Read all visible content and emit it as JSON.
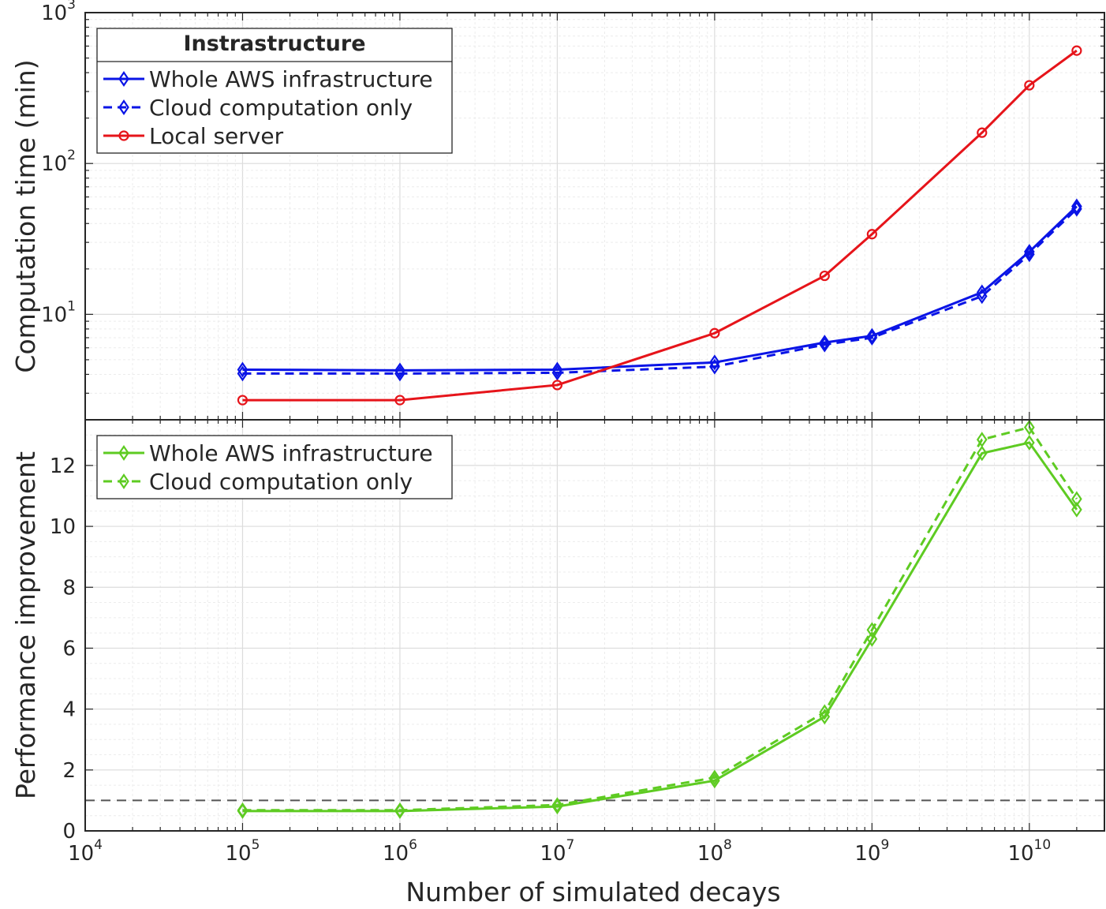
{
  "chart_data": [
    {
      "type": "line",
      "xscale": "log",
      "yscale": "log",
      "xlim": [
        10000,
        30000000000
      ],
      "ylim": [
        2,
        1000
      ],
      "grid": true,
      "ylabel": "Computation time (min)",
      "ytick_labels": [
        {
          "base": "10",
          "exp": "1",
          "value": 10
        },
        {
          "base": "10",
          "exp": "2",
          "value": 100
        },
        {
          "base": "10",
          "exp": "3",
          "value": 1000
        }
      ],
      "legend": {
        "title": "Instrastructure",
        "placement": "top-left"
      },
      "series": [
        {
          "name": "Whole AWS infrastructure",
          "color": "#0a14e6",
          "linestyle": "solid",
          "marker": "diamond",
          "x": [
            100000,
            1000000,
            10000000,
            100000000,
            500000000,
            1000000000,
            5000000000,
            10000000000,
            20000000000
          ],
          "y": [
            4.3,
            4.25,
            4.3,
            4.8,
            6.5,
            7.2,
            14,
            26,
            52
          ]
        },
        {
          "name": "Cloud computation only",
          "color": "#0a14e6",
          "linestyle": "dashed",
          "marker": "diamond",
          "x": [
            100000,
            1000000,
            10000000,
            100000000,
            500000000,
            1000000000,
            5000000000,
            10000000000,
            20000000000
          ],
          "y": [
            4.05,
            4.05,
            4.1,
            4.5,
            6.3,
            7.0,
            13.2,
            25,
            50
          ]
        },
        {
          "name": "Local server",
          "color": "#e6141a",
          "linestyle": "solid",
          "marker": "circle",
          "x": [
            100000,
            1000000,
            10000000,
            100000000,
            500000000,
            1000000000,
            5000000000,
            10000000000,
            20000000000
          ],
          "y": [
            2.7,
            2.7,
            3.4,
            7.5,
            18,
            34,
            160,
            330,
            560
          ]
        }
      ]
    },
    {
      "type": "line",
      "xscale": "log",
      "yscale": "linear",
      "xlim": [
        10000,
        30000000000
      ],
      "ylim": [
        0,
        13.5
      ],
      "grid": true,
      "xlabel": "Number of simulated decays",
      "ylabel": "Performance improvement",
      "xtick_labels": [
        {
          "base": "10",
          "exp": "4",
          "value": 10000
        },
        {
          "base": "10",
          "exp": "5",
          "value": 100000
        },
        {
          "base": "10",
          "exp": "6",
          "value": 1000000
        },
        {
          "base": "10",
          "exp": "7",
          "value": 10000000
        },
        {
          "base": "10",
          "exp": "8",
          "value": 100000000
        },
        {
          "base": "10",
          "exp": "9",
          "value": 1000000000
        },
        {
          "base": "10",
          "exp": "10",
          "value": 10000000000
        }
      ],
      "yticks": [
        0,
        2,
        4,
        6,
        8,
        10,
        12
      ],
      "reference_line": {
        "y": 1,
        "color": "#555555",
        "linestyle": "dashed"
      },
      "legend": {
        "placement": "top-left"
      },
      "series": [
        {
          "name": "Whole AWS infrastructure",
          "color": "#5ecb22",
          "linestyle": "solid",
          "marker": "diamond",
          "x": [
            100000,
            1000000,
            10000000,
            100000000,
            500000000,
            1000000000,
            5000000000,
            10000000000,
            20000000000
          ],
          "y": [
            0.65,
            0.65,
            0.8,
            1.65,
            3.75,
            6.3,
            12.4,
            12.75,
            10.55
          ]
        },
        {
          "name": "Cloud computation only",
          "color": "#5ecb22",
          "linestyle": "dashed",
          "marker": "diamond",
          "x": [
            100000,
            1000000,
            10000000,
            100000000,
            500000000,
            1000000000,
            5000000000,
            10000000000,
            20000000000
          ],
          "y": [
            0.68,
            0.68,
            0.85,
            1.75,
            3.9,
            6.6,
            12.85,
            13.25,
            10.9
          ]
        }
      ]
    }
  ]
}
